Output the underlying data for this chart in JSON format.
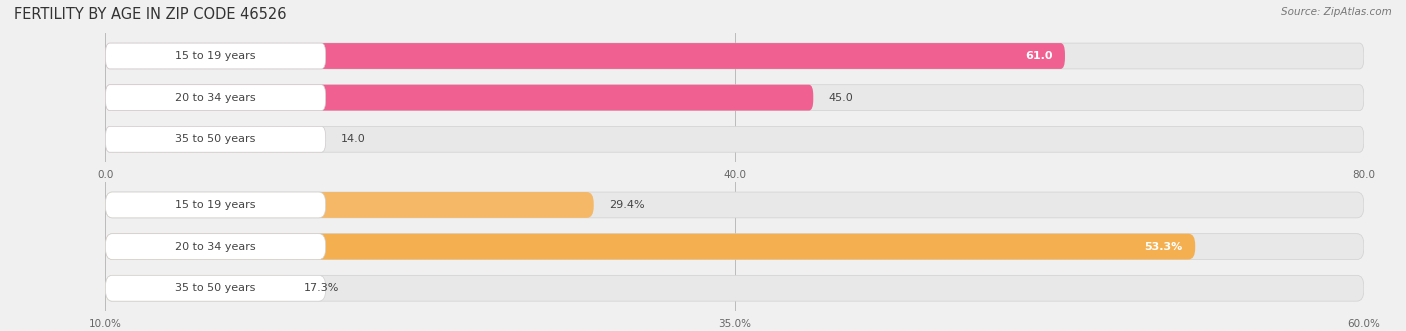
{
  "title": "FERTILITY BY AGE IN ZIP CODE 46526",
  "source": "Source: ZipAtlas.com",
  "top_chart": {
    "categories": [
      "15 to 19 years",
      "20 to 34 years",
      "35 to 50 years"
    ],
    "values": [
      61.0,
      45.0,
      14.0
    ],
    "xlim": [
      0,
      80
    ],
    "xticks": [
      0.0,
      40.0,
      80.0
    ],
    "xtick_labels": [
      "0.0",
      "40.0",
      "80.0"
    ],
    "bar_colors": [
      "#f06090",
      "#f06090",
      "#f4a0b8"
    ],
    "value_labels": [
      "61.0",
      "45.0",
      "14.0"
    ],
    "value_inside": [
      true,
      false,
      false
    ]
  },
  "bottom_chart": {
    "categories": [
      "15 to 19 years",
      "20 to 34 years",
      "35 to 50 years"
    ],
    "values": [
      29.4,
      53.3,
      17.3
    ],
    "xlim": [
      10,
      60
    ],
    "xticks": [
      10.0,
      35.0,
      60.0
    ],
    "xtick_labels": [
      "10.0%",
      "35.0%",
      "60.0%"
    ],
    "bar_colors": [
      "#f4b866",
      "#f4b050",
      "#f8d0a0"
    ],
    "value_labels": [
      "29.4%",
      "53.3%",
      "17.3%"
    ],
    "value_inside": [
      false,
      true,
      false
    ]
  },
  "bg_color": "#f0f0f0",
  "bar_bg_color": "#e8e8e8",
  "bar_outline_color": "#d8d8d8",
  "label_fontsize": 8.0,
  "value_fontsize": 8.0,
  "title_fontsize": 10.5,
  "source_fontsize": 7.5
}
